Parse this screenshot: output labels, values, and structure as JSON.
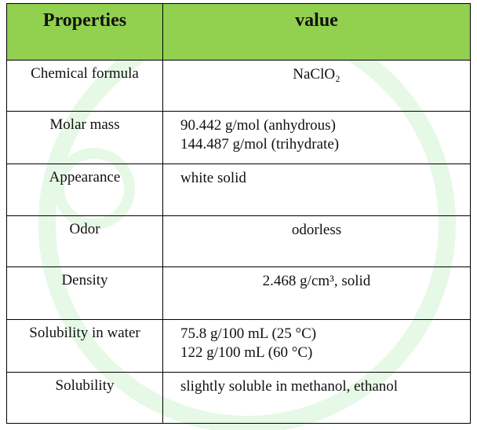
{
  "table": {
    "header": [
      "Properties",
      "value"
    ],
    "rows": [
      [
        "Chemical formula",
        [
          "NaClO₂"
        ]
      ],
      [
        "Molar mass",
        [
          "90.442 g/mol (anhydrous)",
          "144.487 g/mol (trihydrate)"
        ]
      ],
      [
        "Appearance",
        [
          "white solid"
        ]
      ],
      [
        "Odor",
        [
          "odorless"
        ]
      ],
      [
        "Density",
        [
          "2.468 g/cm³, solid"
        ]
      ],
      [
        "Solubility in water",
        [
          "75.8 g/100 mL (25 °C)",
          "122 g/100 mL (60 °C)"
        ]
      ],
      [
        "Solubility",
        [
          "slightly soluble in methanol, ethanol"
        ]
      ]
    ]
  }
}
